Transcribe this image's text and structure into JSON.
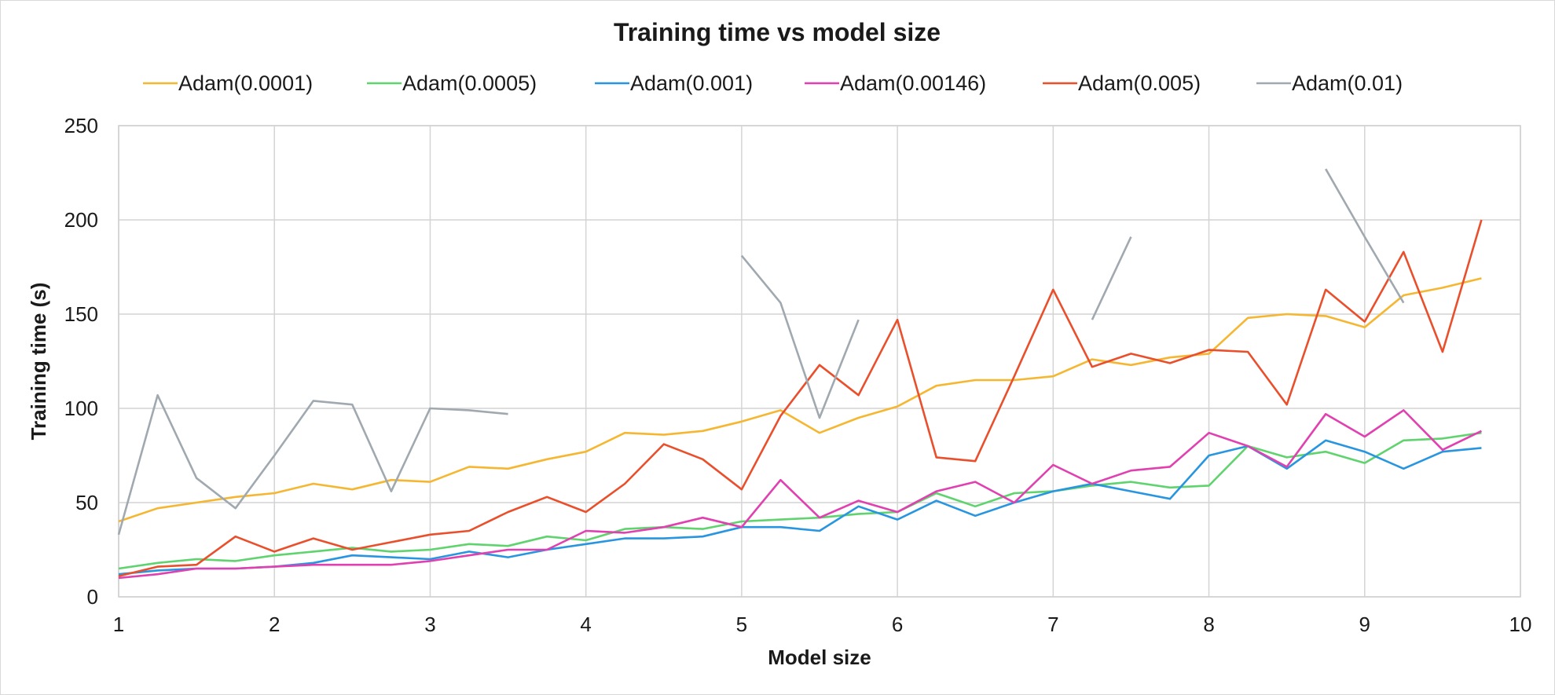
{
  "chart_data": {
    "type": "line",
    "title": "Training time vs model size",
    "xlabel": "Model size",
    "ylabel": "Training time (s)",
    "xlim": [
      1,
      10
    ],
    "ylim": [
      0,
      250
    ],
    "xticks": [
      1,
      2,
      3,
      4,
      5,
      6,
      7,
      8,
      9,
      10
    ],
    "yticks": [
      0,
      50,
      100,
      150,
      200,
      250
    ],
    "grid": true,
    "legend_position": "top",
    "series": [
      {
        "name": "Adam(0.0001)",
        "color": "#f5b731",
        "points": [
          [
            1,
            40
          ],
          [
            1.25,
            47
          ],
          [
            1.5,
            50
          ],
          [
            1.75,
            53
          ],
          [
            2,
            55
          ],
          [
            2.25,
            60
          ],
          [
            2.5,
            57
          ],
          [
            2.75,
            62
          ],
          [
            3,
            61
          ],
          [
            3.25,
            69
          ],
          [
            3.5,
            68
          ],
          [
            3.75,
            73
          ],
          [
            4,
            77
          ],
          [
            4.25,
            87
          ],
          [
            4.5,
            86
          ],
          [
            4.75,
            88
          ],
          [
            5,
            93
          ],
          [
            5.25,
            99
          ],
          [
            5.5,
            87
          ],
          [
            5.75,
            95
          ],
          [
            6,
            101
          ],
          [
            6.25,
            112
          ],
          [
            6.5,
            115
          ],
          [
            6.75,
            115
          ],
          [
            7,
            117
          ],
          [
            7.25,
            126
          ],
          [
            7.5,
            123
          ],
          [
            7.75,
            127
          ],
          [
            8,
            129
          ],
          [
            8.25,
            148
          ],
          [
            8.5,
            150
          ],
          [
            8.75,
            149
          ],
          [
            9,
            143
          ],
          [
            9.25,
            160
          ],
          [
            9.5,
            164
          ],
          [
            9.75,
            169
          ]
        ]
      },
      {
        "name": "Adam(0.0005)",
        "color": "#5fd36e",
        "points": [
          [
            1,
            15
          ],
          [
            1.25,
            18
          ],
          [
            1.5,
            20
          ],
          [
            1.75,
            19
          ],
          [
            2,
            22
          ],
          [
            2.25,
            24
          ],
          [
            2.5,
            26
          ],
          [
            2.75,
            24
          ],
          [
            3,
            25
          ],
          [
            3.25,
            28
          ],
          [
            3.5,
            27
          ],
          [
            3.75,
            32
          ],
          [
            4,
            30
          ],
          [
            4.25,
            36
          ],
          [
            4.5,
            37
          ],
          [
            4.75,
            36
          ],
          [
            5,
            40
          ],
          [
            5.25,
            41
          ],
          [
            5.5,
            42
          ],
          [
            5.75,
            44
          ],
          [
            6,
            45
          ],
          [
            6.25,
            55
          ],
          [
            6.5,
            48
          ],
          [
            6.75,
            55
          ],
          [
            7,
            56
          ],
          [
            7.25,
            59
          ],
          [
            7.5,
            61
          ],
          [
            7.75,
            58
          ],
          [
            8,
            59
          ],
          [
            8.25,
            80
          ],
          [
            8.5,
            74
          ],
          [
            8.75,
            77
          ],
          [
            9,
            71
          ],
          [
            9.25,
            83
          ],
          [
            9.5,
            84
          ],
          [
            9.75,
            87
          ]
        ]
      },
      {
        "name": "Adam(0.001)",
        "color": "#2895e0",
        "points": [
          [
            1,
            12
          ],
          [
            1.25,
            14
          ],
          [
            1.5,
            15
          ],
          [
            1.75,
            15
          ],
          [
            2,
            16
          ],
          [
            2.25,
            18
          ],
          [
            2.5,
            22
          ],
          [
            2.75,
            21
          ],
          [
            3,
            20
          ],
          [
            3.25,
            24
          ],
          [
            3.5,
            21
          ],
          [
            3.75,
            25
          ],
          [
            4,
            28
          ],
          [
            4.25,
            31
          ],
          [
            4.5,
            31
          ],
          [
            4.75,
            32
          ],
          [
            5,
            37
          ],
          [
            5.25,
            37
          ],
          [
            5.5,
            35
          ],
          [
            5.75,
            48
          ],
          [
            6,
            41
          ],
          [
            6.25,
            51
          ],
          [
            6.5,
            43
          ],
          [
            6.75,
            50
          ],
          [
            7,
            56
          ],
          [
            7.25,
            60
          ],
          [
            7.5,
            56
          ],
          [
            7.75,
            52
          ],
          [
            8,
            75
          ],
          [
            8.25,
            80
          ],
          [
            8.5,
            68
          ],
          [
            8.75,
            83
          ],
          [
            9,
            77
          ],
          [
            9.25,
            68
          ],
          [
            9.5,
            77
          ],
          [
            9.75,
            79
          ]
        ]
      },
      {
        "name": "Adam(0.00146)",
        "color": "#e040b0",
        "points": [
          [
            1,
            10
          ],
          [
            1.25,
            12
          ],
          [
            1.5,
            15
          ],
          [
            1.75,
            15
          ],
          [
            2,
            16
          ],
          [
            2.25,
            17
          ],
          [
            2.5,
            17
          ],
          [
            2.75,
            17
          ],
          [
            3,
            19
          ],
          [
            3.25,
            22
          ],
          [
            3.5,
            25
          ],
          [
            3.75,
            25
          ],
          [
            4,
            35
          ],
          [
            4.25,
            34
          ],
          [
            4.5,
            37
          ],
          [
            4.75,
            42
          ],
          [
            5,
            37
          ],
          [
            5.25,
            62
          ],
          [
            5.5,
            42
          ],
          [
            5.75,
            51
          ],
          [
            6,
            45
          ],
          [
            6.25,
            56
          ],
          [
            6.5,
            61
          ],
          [
            6.75,
            50
          ],
          [
            7,
            70
          ],
          [
            7.25,
            60
          ],
          [
            7.5,
            67
          ],
          [
            7.75,
            69
          ],
          [
            8,
            87
          ],
          [
            8.25,
            80
          ],
          [
            8.5,
            69
          ],
          [
            8.75,
            97
          ],
          [
            9,
            85
          ],
          [
            9.25,
            99
          ],
          [
            9.5,
            78
          ],
          [
            9.75,
            88
          ]
        ]
      },
      {
        "name": "Adam(0.005)",
        "color": "#ea4f2c",
        "points": [
          [
            1,
            11
          ],
          [
            1.25,
            16
          ],
          [
            1.5,
            17
          ],
          [
            1.75,
            32
          ],
          [
            2,
            24
          ],
          [
            2.25,
            31
          ],
          [
            2.5,
            25
          ],
          [
            2.75,
            29
          ],
          [
            3,
            33
          ],
          [
            3.25,
            35
          ],
          [
            3.5,
            45
          ],
          [
            3.75,
            53
          ],
          [
            4,
            45
          ],
          [
            4.25,
            60
          ],
          [
            4.5,
            81
          ],
          [
            4.75,
            73
          ],
          [
            5,
            57
          ],
          [
            5.25,
            96
          ],
          [
            5.5,
            123
          ],
          [
            5.75,
            107
          ],
          [
            6,
            147
          ],
          [
            6.25,
            74
          ],
          [
            6.5,
            72
          ],
          [
            6.75,
            117
          ],
          [
            7,
            163
          ],
          [
            7.25,
            122
          ],
          [
            7.5,
            129
          ],
          [
            7.75,
            124
          ],
          [
            8,
            131
          ],
          [
            8.25,
            130
          ],
          [
            8.5,
            102
          ],
          [
            8.75,
            163
          ],
          [
            9,
            146
          ],
          [
            9.25,
            183
          ],
          [
            9.5,
            130
          ],
          [
            9.75,
            200
          ]
        ]
      },
      {
        "name": "Adam(0.01)",
        "color": "#a0a8b0",
        "points": [
          [
            1,
            33
          ],
          [
            1.25,
            107
          ],
          [
            1.5,
            63
          ],
          [
            1.75,
            47
          ],
          [
            2,
            75
          ],
          [
            2.25,
            104
          ],
          [
            2.5,
            102
          ],
          [
            2.75,
            56
          ],
          [
            3,
            100
          ],
          [
            3.25,
            99
          ],
          [
            3.5,
            97
          ],
          null,
          [
            5,
            181
          ],
          [
            5.25,
            156
          ],
          [
            5.5,
            95
          ],
          [
            5.75,
            147
          ],
          null,
          [
            7.25,
            147
          ],
          [
            7.5,
            191
          ],
          null,
          [
            8.75,
            227
          ],
          [
            9,
            191
          ],
          [
            9.25,
            156
          ]
        ]
      }
    ]
  }
}
